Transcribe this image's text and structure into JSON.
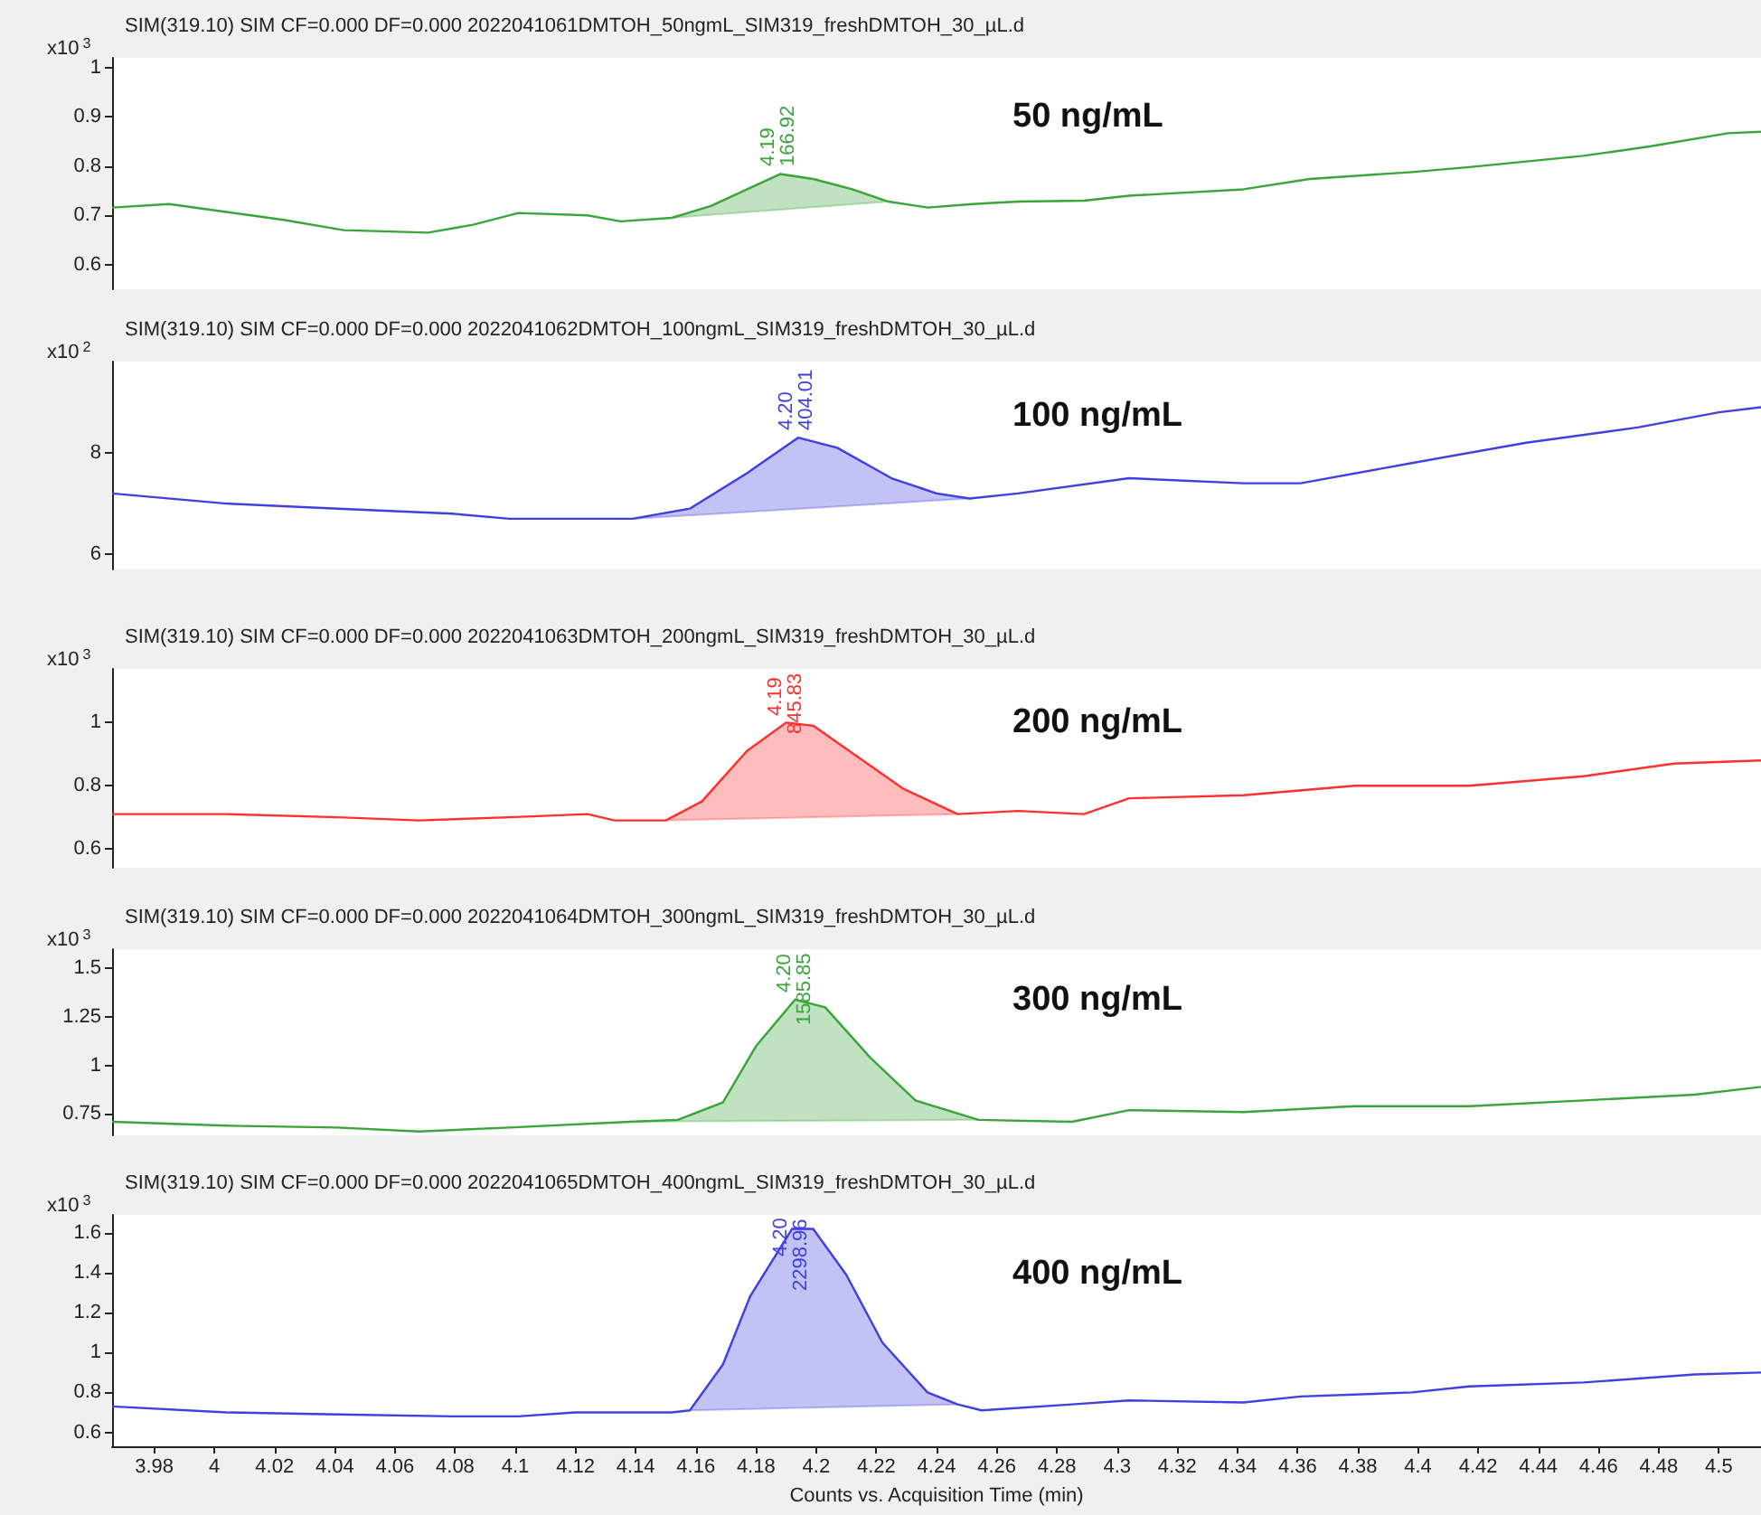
{
  "chart_data": [
    {
      "type": "line",
      "title": "SIM(319.10) SIM CF=0.000 DF=0.000 2022041061DMTOH_50ngmL_SIM319_freshDMTOH_30_µL.d",
      "ylabel": "x10$^{3}$",
      "tick_labels": "y",
      "xlim": [
        3.966,
        4.514
      ],
      "xticks": [
        3.98,
        4,
        4.02,
        4.04,
        4.06,
        4.08,
        4.1,
        4.12,
        4.14,
        4.16,
        4.18,
        4.2,
        4.22,
        4.24,
        4.26,
        4.28,
        4.3,
        4.32,
        4.34,
        4.36,
        4.38,
        4.4,
        4.42,
        4.44,
        4.46,
        4.48,
        4.5
      ],
      "ylim": [
        0.55,
        1.02
      ],
      "yticks": [
        0.6,
        0.7,
        0.8,
        0.9,
        1
      ],
      "series": [
        {
          "type": "area",
          "color": "#3aa53a",
          "x": [
            4.152,
            4.165,
            4.188,
            4.199,
            4.212,
            4.224
          ],
          "values": [
            0.695,
            0.719,
            0.784,
            0.774,
            0.753,
            0.728
          ]
        },
        {
          "type": "line",
          "color": "#3aa53a",
          "x": [
            3.966,
            3.985,
            4.004,
            4.023,
            4.043,
            4.071,
            4.086,
            4.101,
            4.124,
            4.135,
            4.152,
            4.165,
            4.188,
            4.199,
            4.212,
            4.224,
            4.237,
            4.252,
            4.267,
            4.289,
            4.304,
            4.342,
            4.364,
            4.398,
            4.417,
            4.455,
            4.477,
            4.503,
            4.514
          ],
          "values": [
            0.716,
            0.723,
            0.707,
            0.691,
            0.67,
            0.665,
            0.681,
            0.705,
            0.7,
            0.688,
            0.695,
            0.719,
            0.784,
            0.774,
            0.753,
            0.728,
            0.716,
            0.723,
            0.728,
            0.73,
            0.74,
            0.753,
            0.774,
            0.788,
            0.798,
            0.821,
            0.84,
            0.867,
            0.87
          ]
        }
      ],
      "annotations": [
        "4.19",
        "166.92",
        "50 ng/mL"
      ]
    },
    {
      "type": "line",
      "title": "SIM(319.10) SIM CF=0.000 DF=0.000 2022041062DMTOH_100ngmL_SIM319_freshDMTOH_30_µL.d",
      "ylabel": "x10$^{2}$",
      "tick_labels": "y",
      "xlim": [
        3.966,
        4.514
      ],
      "xticks": [
        3.98,
        4,
        4.02,
        4.04,
        4.06,
        4.08,
        4.1,
        4.12,
        4.14,
        4.16,
        4.18,
        4.2,
        4.22,
        4.24,
        4.26,
        4.28,
        4.3,
        4.32,
        4.34,
        4.36,
        4.38,
        4.4,
        4.42,
        4.44,
        4.46,
        4.48,
        4.5
      ],
      "ylim": [
        5.7,
        9.8
      ],
      "yticks": [
        6,
        8
      ],
      "series": [
        {
          "type": "area",
          "color": "#4040e0",
          "x": [
            4.139,
            4.158,
            4.177,
            4.194,
            4.207,
            4.225,
            4.24,
            4.251
          ],
          "values": [
            6.7,
            6.9,
            7.6,
            8.3,
            8.1,
            7.5,
            7.2,
            7.1
          ]
        },
        {
          "type": "line",
          "color": "#4040e0",
          "x": [
            3.966,
            4.004,
            4.041,
            4.079,
            4.098,
            4.128,
            4.139,
            4.158,
            4.177,
            4.194,
            4.207,
            4.225,
            4.24,
            4.251,
            4.267,
            4.304,
            4.342,
            4.361,
            4.398,
            4.436,
            4.473,
            4.5,
            4.514
          ],
          "values": [
            7.2,
            7,
            6.9,
            6.8,
            6.7,
            6.7,
            6.7,
            6.9,
            7.6,
            8.3,
            8.1,
            7.5,
            7.2,
            7.1,
            7.2,
            7.5,
            7.4,
            7.4,
            7.8,
            8.2,
            8.5,
            8.8,
            8.9
          ]
        }
      ],
      "annotations": [
        "4.20",
        "404.01",
        "100 ng/mL"
      ]
    },
    {
      "type": "line",
      "title": "SIM(319.10) SIM CF=0.000 DF=0.000 2022041063DMTOH_200ngmL_SIM319_freshDMTOH_30_µL.d",
      "ylabel": "x10$^{3}$",
      "tick_labels": "y",
      "xlim": [
        3.966,
        4.514
      ],
      "xticks": [
        3.98,
        4,
        4.02,
        4.04,
        4.06,
        4.08,
        4.1,
        4.12,
        4.14,
        4.16,
        4.18,
        4.2,
        4.22,
        4.24,
        4.26,
        4.28,
        4.3,
        4.32,
        4.34,
        4.36,
        4.38,
        4.4,
        4.42,
        4.44,
        4.46,
        4.48,
        4.5
      ],
      "ylim": [
        0.54,
        1.17
      ],
      "yticks": [
        0.6,
        0.8,
        1
      ],
      "series": [
        {
          "type": "area",
          "color": "#ff3030",
          "x": [
            4.15,
            4.162,
            4.177,
            4.19,
            4.199,
            4.214,
            4.229,
            4.247
          ],
          "values": [
            0.69,
            0.75,
            0.91,
            1.0,
            0.99,
            0.89,
            0.79,
            0.71
          ]
        },
        {
          "type": "line",
          "color": "#ff3030",
          "x": [
            3.966,
            4.004,
            4.041,
            4.068,
            4.098,
            4.124,
            4.133,
            4.15,
            4.162,
            4.177,
            4.19,
            4.199,
            4.214,
            4.229,
            4.247,
            4.267,
            4.289,
            4.304,
            4.342,
            4.379,
            4.417,
            4.455,
            4.485,
            4.514
          ],
          "values": [
            0.71,
            0.71,
            0.7,
            0.69,
            0.7,
            0.71,
            0.69,
            0.69,
            0.75,
            0.91,
            1.0,
            0.99,
            0.89,
            0.79,
            0.71,
            0.72,
            0.71,
            0.76,
            0.77,
            0.8,
            0.8,
            0.83,
            0.87,
            0.88
          ]
        }
      ],
      "annotations": [
        "4.19",
        "845.83",
        "200 ng/mL"
      ]
    },
    {
      "type": "line",
      "title": "SIM(319.10) SIM CF=0.000 DF=0.000 2022041064DMTOH_300ngmL_SIM319_freshDMTOH_30_µL.d",
      "ylabel": "x10$^{3}$",
      "tick_labels": "y",
      "xlim": [
        3.966,
        4.514
      ],
      "xticks": [
        3.98,
        4,
        4.02,
        4.04,
        4.06,
        4.08,
        4.1,
        4.12,
        4.14,
        4.16,
        4.18,
        4.2,
        4.22,
        4.24,
        4.26,
        4.28,
        4.3,
        4.32,
        4.34,
        4.36,
        4.38,
        4.4,
        4.42,
        4.44,
        4.46,
        4.48,
        4.5
      ],
      "ylim": [
        0.64,
        1.6
      ],
      "yticks": [
        0.75,
        1,
        1.25,
        1.5
      ],
      "series": [
        {
          "type": "area",
          "color": "#3aa53a",
          "x": [
            4.138,
            4.154,
            4.169,
            4.18,
            4.193,
            4.203,
            4.218,
            4.233,
            4.254
          ],
          "values": [
            0.71,
            0.72,
            0.81,
            1.1,
            1.34,
            1.3,
            1.04,
            0.82,
            0.72
          ]
        },
        {
          "type": "line",
          "color": "#3aa53a",
          "x": [
            3.966,
            4.004,
            4.041,
            4.068,
            4.098,
            4.138,
            4.154,
            4.169,
            4.18,
            4.193,
            4.203,
            4.218,
            4.233,
            4.254,
            4.285,
            4.304,
            4.342,
            4.379,
            4.417,
            4.455,
            4.492,
            4.514
          ],
          "values": [
            0.71,
            0.69,
            0.68,
            0.66,
            0.68,
            0.71,
            0.72,
            0.81,
            1.1,
            1.34,
            1.3,
            1.04,
            0.82,
            0.72,
            0.71,
            0.77,
            0.76,
            0.79,
            0.79,
            0.82,
            0.85,
            0.89
          ]
        }
      ],
      "annotations": [
        "4.20",
        "1585.85",
        "300 ng/mL"
      ]
    },
    {
      "type": "line",
      "title": "SIM(319.10) SIM CF=0.000 DF=0.000 2022041065DMTOH_400ngmL_SIM319_freshDMTOH_30_µL.d",
      "ylabel": "x10$^{3}$",
      "xlabel": "Counts vs. Acquisition Time (min)",
      "xlim": [
        3.966,
        4.514
      ],
      "xticks": [
        3.98,
        4,
        4.02,
        4.04,
        4.06,
        4.08,
        4.1,
        4.12,
        4.14,
        4.16,
        4.18,
        4.2,
        4.22,
        4.24,
        4.26,
        4.28,
        4.3,
        4.32,
        4.34,
        4.36,
        4.38,
        4.4,
        4.42,
        4.44,
        4.46,
        4.48,
        4.5
      ],
      "ylim": [
        0.53,
        1.69
      ],
      "yticks": [
        0.6,
        0.8,
        1,
        1.2,
        1.4,
        1.6
      ],
      "series": [
        {
          "type": "area",
          "color": "#4040e0",
          "x": [
            4.158,
            4.169,
            4.178,
            4.192,
            4.199,
            4.21,
            4.222,
            4.237,
            4.247
          ],
          "values": [
            0.71,
            0.94,
            1.28,
            1.62,
            1.62,
            1.39,
            1.05,
            0.8,
            0.74
          ]
        },
        {
          "type": "line",
          "color": "#4040e0",
          "x": [
            3.966,
            4.004,
            4.041,
            4.079,
            4.101,
            4.12,
            4.152,
            4.158,
            4.169,
            4.178,
            4.192,
            4.199,
            4.21,
            4.222,
            4.237,
            4.247,
            4.255,
            4.285,
            4.304,
            4.342,
            4.361,
            4.398,
            4.417,
            4.455,
            4.492,
            4.514
          ],
          "values": [
            0.73,
            0.7,
            0.69,
            0.68,
            0.68,
            0.7,
            0.7,
            0.71,
            0.94,
            1.28,
            1.62,
            1.62,
            1.39,
            1.05,
            0.8,
            0.74,
            0.71,
            0.74,
            0.76,
            0.75,
            0.78,
            0.8,
            0.83,
            0.85,
            0.89,
            0.9
          ]
        }
      ],
      "annotations": [
        "4.20",
        "2298.96",
        "400 ng/mL"
      ]
    }
  ]
}
